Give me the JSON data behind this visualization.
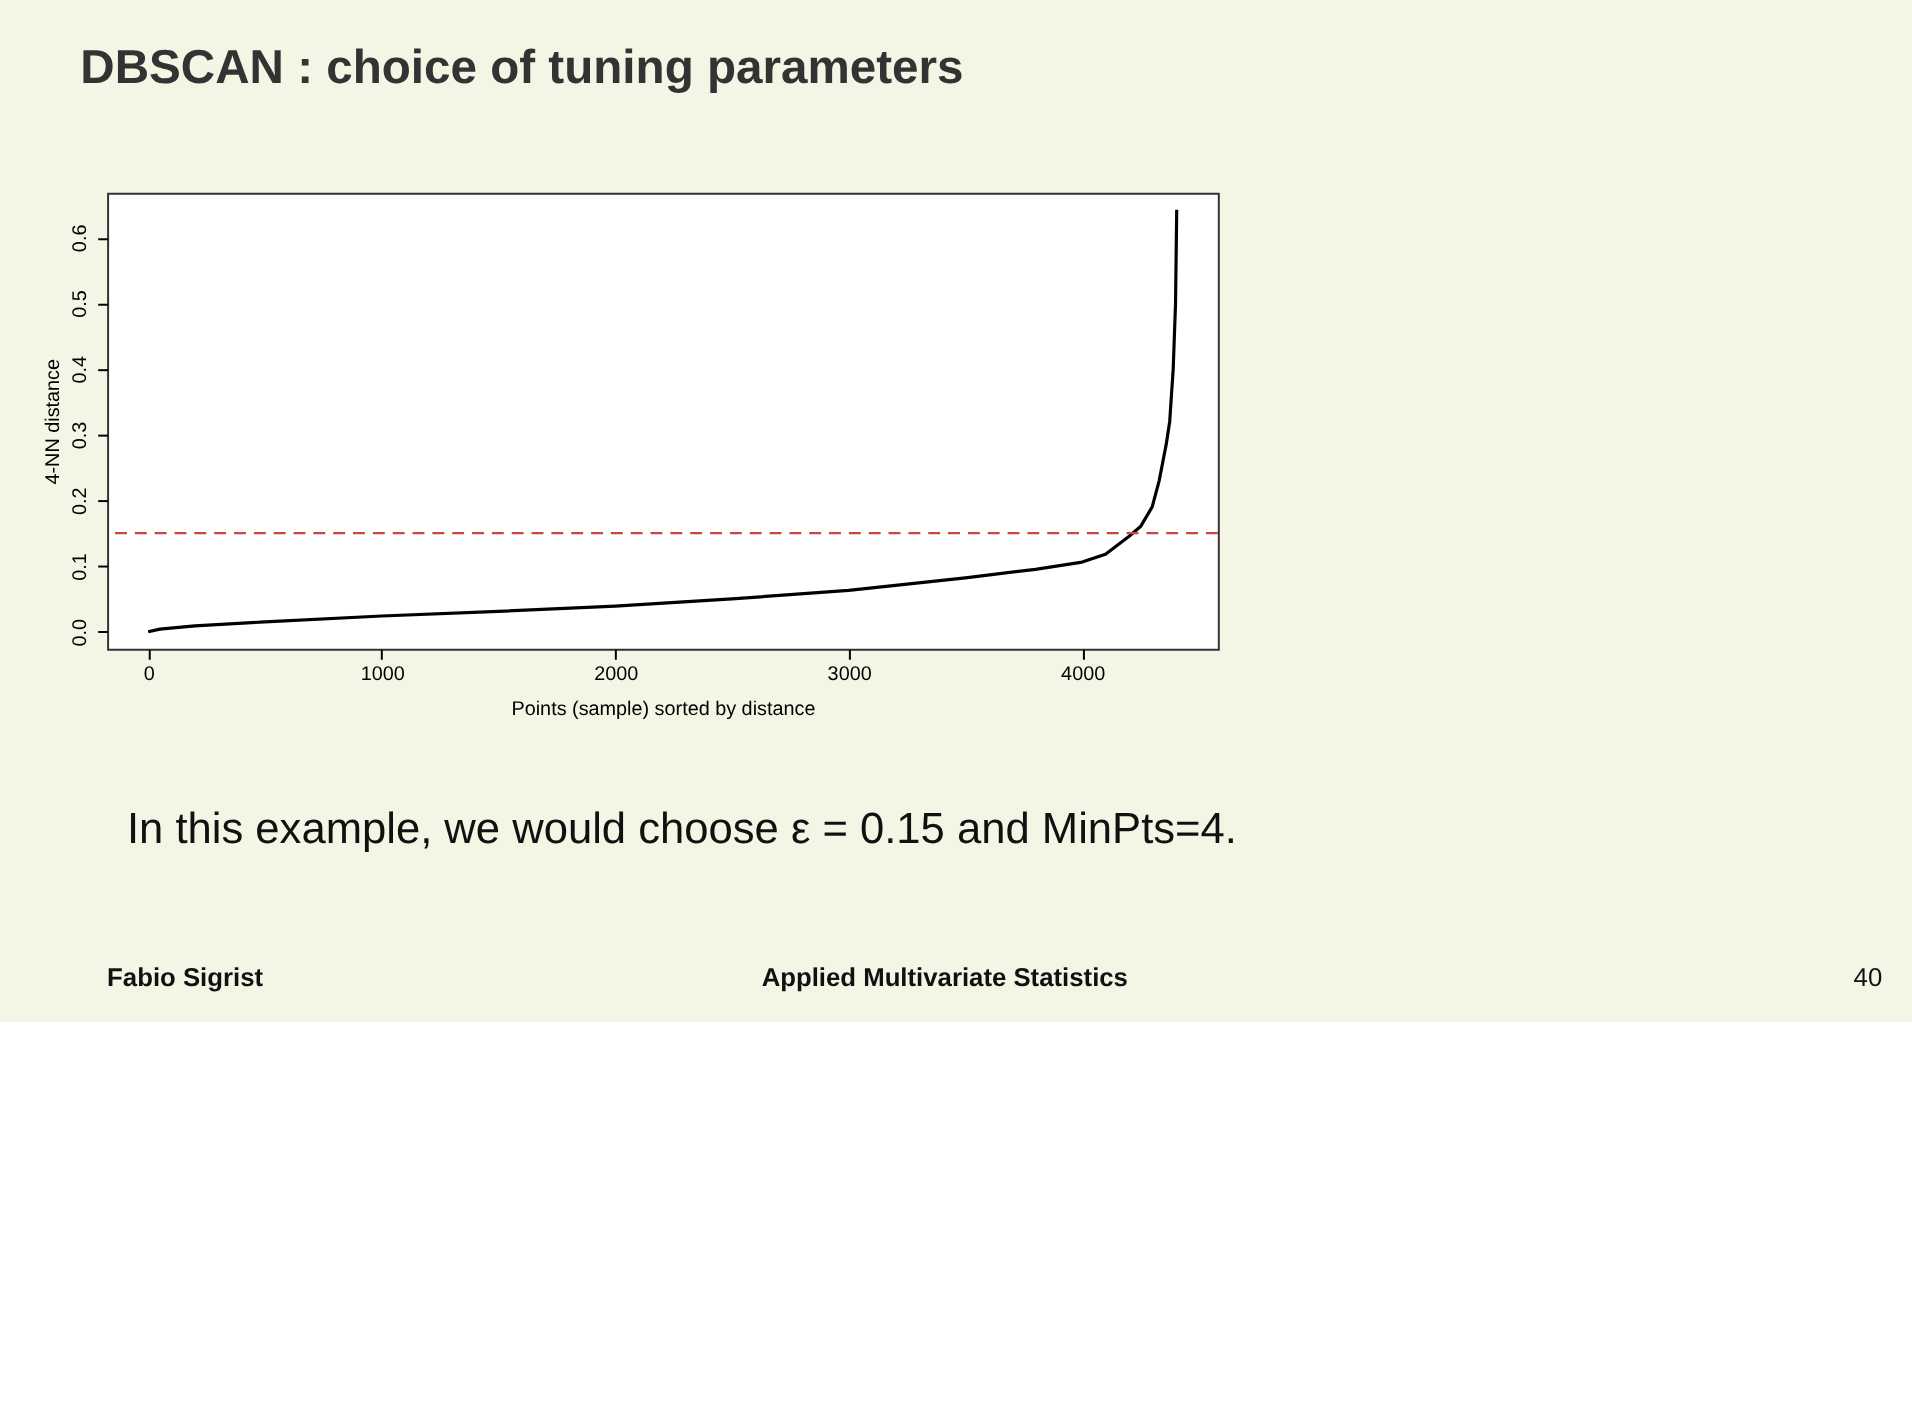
{
  "chart_data": {
    "type": "line",
    "title": "DBSCAN : choice of tuning parameters",
    "xlabel": "Points (sample) sorted by distance",
    "ylabel": "4-NN distance",
    "x": [
      0,
      50,
      200,
      500,
      1000,
      1500,
      2000,
      2500,
      3000,
      3500,
      3800,
      4000,
      4100,
      4200,
      4250,
      4300,
      4330,
      4360,
      4375,
      4390,
      4400,
      4405
    ],
    "series": [
      {
        "color": "#000000",
        "values": [
          0,
          0.004,
          0.009,
          0.015,
          0.024,
          0.031,
          0.039,
          0.05,
          0.063,
          0.082,
          0.095,
          0.106,
          0.118,
          0.145,
          0.16,
          0.19,
          0.23,
          0.285,
          0.32,
          0.4,
          0.5,
          0.642
        ]
      }
    ],
    "xlim": [
      -176,
      4581
    ],
    "ylim": [
      -0.026,
      0.668
    ],
    "xticks": [
      0,
      1000,
      2000,
      3000,
      4000
    ],
    "yticks": [
      {
        "value": 0,
        "label": "0.0"
      },
      0.1,
      0.2,
      0.3,
      0.4,
      0.5,
      0.6
    ],
    "ref_lines": [
      {
        "axis": "y",
        "value": 0.15,
        "color": "#cc4444",
        "line_style": "dashed"
      }
    ],
    "grid": false,
    "legend": false,
    "marker": "none",
    "line_style": "solid",
    "annotations": [
      "In this example, we would choose ε = 0.15 and MinPts=4.",
      "Fabio Sigrist",
      "Applied Multivariate Statistics",
      "40"
    ]
  }
}
